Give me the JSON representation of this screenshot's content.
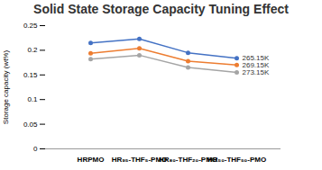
{
  "chart_data": {
    "type": "line",
    "title": "Solid State Storage Capacity Tuning Effect",
    "y_label": "Storage capacity (wt%)",
    "categories": [
      "HRPMO",
      "HR₉₅-THF₅-PMO",
      "HR₈₀-THF₂₀-PMO",
      "HR₅₀-THF₅₀-PMO"
    ],
    "series": [
      {
        "name": "265.15K",
        "color": "#4472c4",
        "values": [
          0.215,
          0.223,
          0.195,
          0.184
        ]
      },
      {
        "name": "269.15K",
        "color": "#ed7d31",
        "values": [
          0.194,
          0.204,
          0.178,
          0.17
        ]
      },
      {
        "name": "273.15K",
        "color": "#a5a5a5",
        "values": [
          0.182,
          0.19,
          0.165,
          0.155
        ]
      }
    ],
    "ylim": [
      0,
      0.25
    ],
    "yticks": [
      0,
      0.05,
      0.1,
      0.15,
      0.2,
      0.25
    ],
    "grid": false,
    "marker": "circle"
  }
}
